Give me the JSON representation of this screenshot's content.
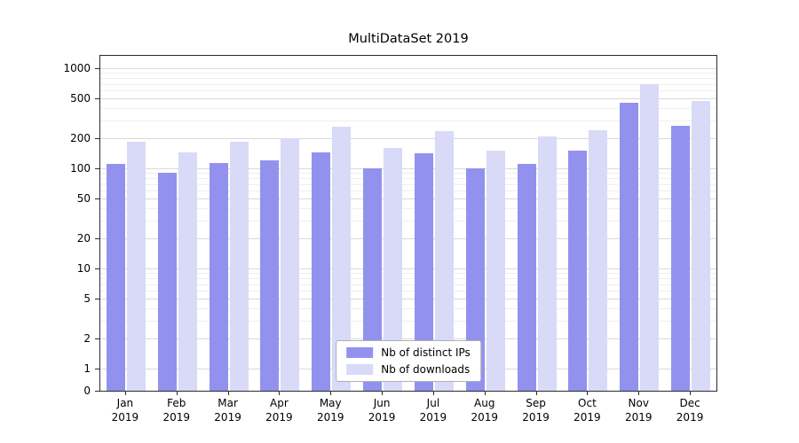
{
  "chart_data": {
    "type": "bar",
    "title": "MultiDataSet 2019",
    "categories": [
      "Jan 2019",
      "Feb 2019",
      "Mar 2019",
      "Apr 2019",
      "May 2019",
      "Jun 2019",
      "Jul 2019",
      "Aug 2019",
      "Sep 2019",
      "Oct 2019",
      "Nov 2019",
      "Dec 2019"
    ],
    "series": [
      {
        "name": "Nb of distinct IPs",
        "color": "#9292ee",
        "values": [
          110,
          90,
          112,
          120,
          145,
          100,
          140,
          100,
          110,
          150,
          450,
          265
        ]
      },
      {
        "name": "Nb of downloads",
        "color": "#d9d9f8",
        "values": [
          185,
          145,
          185,
          198,
          260,
          160,
          235,
          150,
          210,
          240,
          700,
          470
        ]
      }
    ],
    "y_ticks": [
      0,
      1,
      2,
      5,
      10,
      20,
      50,
      100,
      200,
      500,
      1000
    ],
    "y_scale": "symlog",
    "ylim": [
      0,
      1000
    ],
    "xlabel": "",
    "ylabel": "",
    "grid": "horizontal",
    "legend_position": "lower center",
    "colors": {
      "grid_major": "#d9d9d9",
      "grid_minor": "#efefef",
      "spine": "#2b2b2b"
    }
  }
}
